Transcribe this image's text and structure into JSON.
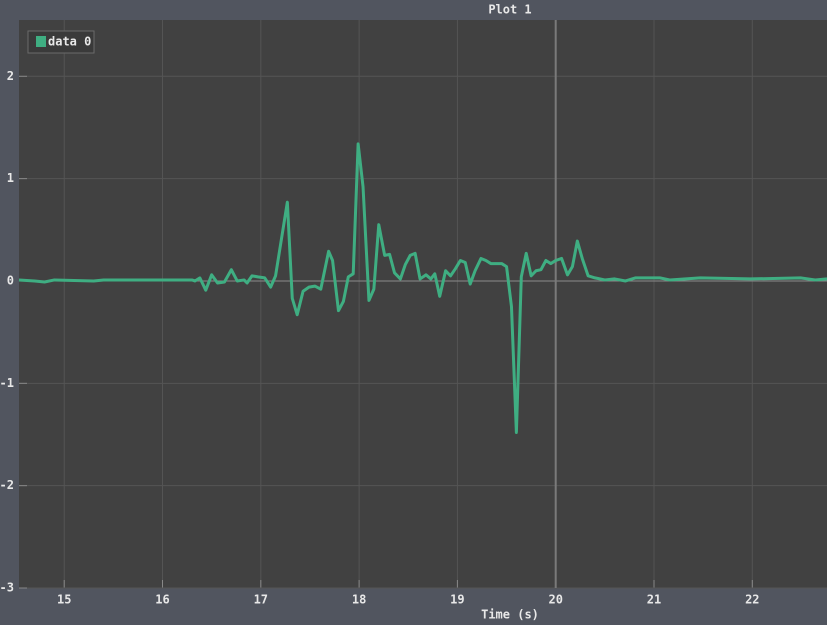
{
  "chart_data": {
    "type": "line",
    "title": "Plot 1",
    "xlabel": "Time (s)",
    "x": [
      14.54,
      14.7,
      14.8,
      14.9,
      15.3,
      15.4,
      16.3,
      16.33,
      16.38,
      16.44,
      16.5,
      16.56,
      16.63,
      16.7,
      16.76,
      16.83,
      16.86,
      16.91,
      16.97,
      17.04,
      17.1,
      17.15,
      17.27,
      17.32,
      17.37,
      17.43,
      17.49,
      17.55,
      17.61,
      17.69,
      17.73,
      17.79,
      17.84,
      17.89,
      17.94,
      17.99,
      18.04,
      18.1,
      18.15,
      18.2,
      18.26,
      18.31,
      18.36,
      18.42,
      18.47,
      18.52,
      18.57,
      18.62,
      18.68,
      18.73,
      18.77,
      18.82,
      18.88,
      18.93,
      18.98,
      19.03,
      19.08,
      19.13,
      19.18,
      19.24,
      19.29,
      19.34,
      19.4,
      19.45,
      19.5,
      19.55,
      19.6,
      19.65,
      19.7,
      19.75,
      19.8,
      19.85,
      19.9,
      19.95,
      20.0,
      20.06,
      20.12,
      20.17,
      20.22,
      20.27,
      20.33,
      20.4,
      20.5,
      20.6,
      20.71,
      20.81,
      21.06,
      21.16,
      21.47,
      21.98,
      22.49,
      22.64,
      22.76
    ],
    "series": [
      {
        "name": "data 0",
        "color": "#3fae82",
        "values": [
          0.01,
          0.0,
          -0.01,
          0.01,
          0.0,
          0.01,
          0.01,
          0.0,
          0.03,
          -0.09,
          0.06,
          -0.02,
          -0.01,
          0.11,
          0.0,
          0.01,
          -0.02,
          0.05,
          0.04,
          0.03,
          -0.06,
          0.05,
          0.77,
          -0.17,
          -0.33,
          -0.1,
          -0.06,
          -0.05,
          -0.08,
          0.29,
          0.2,
          -0.29,
          -0.2,
          0.04,
          0.07,
          1.34,
          0.92,
          -0.19,
          -0.08,
          0.55,
          0.25,
          0.26,
          0.08,
          0.02,
          0.16,
          0.25,
          0.27,
          0.02,
          0.06,
          0.02,
          0.07,
          -0.15,
          0.1,
          0.05,
          0.12,
          0.2,
          0.18,
          -0.03,
          0.1,
          0.22,
          0.2,
          0.17,
          0.17,
          0.17,
          0.14,
          -0.25,
          -1.48,
          0.04,
          0.27,
          0.05,
          0.1,
          0.11,
          0.2,
          0.17,
          0.2,
          0.22,
          0.06,
          0.14,
          0.39,
          0.22,
          0.05,
          0.03,
          0.01,
          0.02,
          0.0,
          0.03,
          0.03,
          0.01,
          0.03,
          0.02,
          0.03,
          0.01,
          0.02
        ]
      }
    ],
    "xlim": [
      14.54,
      22.76
    ],
    "ylim": [
      -3,
      2.55
    ],
    "xticks": [
      15,
      16,
      17,
      18,
      19,
      20,
      21,
      22
    ],
    "yticks": [
      -3,
      -2,
      -1,
      0,
      1,
      2
    ],
    "grid": true,
    "legend": "upper left",
    "hline": 0,
    "vline": 20
  }
}
